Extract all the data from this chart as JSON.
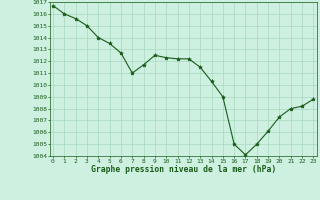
{
  "x": [
    0,
    1,
    2,
    3,
    4,
    5,
    6,
    7,
    8,
    9,
    10,
    11,
    12,
    13,
    14,
    15,
    16,
    17,
    18,
    19,
    20,
    21,
    22,
    23
  ],
  "y": [
    1016.7,
    1016.0,
    1015.6,
    1015.0,
    1014.0,
    1013.5,
    1012.7,
    1011.0,
    1011.7,
    1012.5,
    1012.3,
    1012.2,
    1012.2,
    1011.5,
    1010.3,
    1009.0,
    1005.0,
    1004.1,
    1005.0,
    1006.1,
    1007.3,
    1008.0,
    1008.2,
    1008.8
  ],
  "ylim": [
    1004,
    1017
  ],
  "xlim_min": -0.3,
  "xlim_max": 23.3,
  "yticks": [
    1004,
    1005,
    1006,
    1007,
    1008,
    1009,
    1010,
    1011,
    1012,
    1013,
    1014,
    1015,
    1016,
    1017
  ],
  "xticks": [
    0,
    1,
    2,
    3,
    4,
    5,
    6,
    7,
    8,
    9,
    10,
    11,
    12,
    13,
    14,
    15,
    16,
    17,
    18,
    19,
    20,
    21,
    22,
    23
  ],
  "xlabel": "Graphe pression niveau de la mer (hPa)",
  "line_color": "#1a5c1a",
  "marker": "*",
  "bg_color": "#cdf0e0",
  "grid_color": "#a8d8c0",
  "tick_color": "#1a5c1a",
  "label_color": "#1a5c1a",
  "tick_fontsize": 4.5,
  "xlabel_fontsize": 5.8,
  "linewidth": 0.8,
  "markersize": 2.8
}
